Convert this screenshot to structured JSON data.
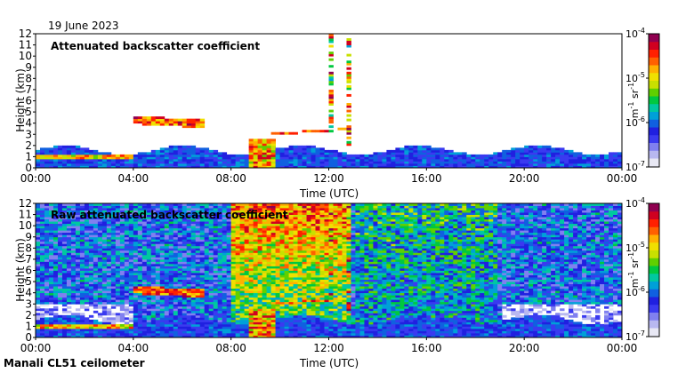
{
  "date": "19 June 2023",
  "footer": "Manali CL51 ceilometer",
  "colors": {
    "colormap": [
      "#e8e8f4",
      "#b8b8f0",
      "#8080f0",
      "#3a3af0",
      "#2020e0",
      "#1060e0",
      "#00a0d8",
      "#00c8a0",
      "#00c840",
      "#60d000",
      "#c8e000",
      "#f0e000",
      "#ffb000",
      "#ff6000",
      "#ff2000",
      "#d00020",
      "#900050"
    ]
  },
  "chart_data": [
    {
      "type": "heatmap",
      "title": "Attenuated backscatter coefficient",
      "xlabel": "Time (UTC)",
      "ylabel": "Height (km)",
      "xlim": [
        0,
        24
      ],
      "ylim": [
        0,
        12
      ],
      "xticks": [
        "00:00",
        "04:00",
        "08:00",
        "12:00",
        "16:00",
        "20:00",
        "00:00"
      ],
      "yticks": [
        "0",
        "1",
        "2",
        "3",
        "4",
        "5",
        "6",
        "7",
        "8",
        "9",
        "10",
        "11",
        "12"
      ],
      "colorbar": {
        "label_base": "m",
        "label_exp1": "-1",
        "label_mid": " sr",
        "label_exp2": "-1",
        "ticks": [
          {
            "base": "10",
            "exp": "-4",
            "value": 0.0001
          },
          {
            "base": "10",
            "exp": "-5",
            "value": 1e-05
          },
          {
            "base": "10",
            "exp": "-6",
            "value": 1e-06
          },
          {
            "base": "10",
            "exp": "-7",
            "value": 1e-07
          }
        ],
        "scale": "log"
      }
    },
    {
      "type": "heatmap",
      "title": "Raw attenuated backscatter coefficient",
      "xlabel": "Time (UTC)",
      "ylabel": "Height (km)",
      "xlim": [
        0,
        24
      ],
      "ylim": [
        0,
        12
      ],
      "xticks": [
        "00:00",
        "04:00",
        "08:00",
        "12:00",
        "16:00",
        "20:00",
        "00:00"
      ],
      "yticks": [
        "0",
        "1",
        "2",
        "3",
        "4",
        "5",
        "6",
        "7",
        "8",
        "9",
        "10",
        "11",
        "12"
      ],
      "colorbar": {
        "label_base": "m",
        "label_exp1": "-1",
        "label_mid": " sr",
        "label_exp2": "-1",
        "ticks": [
          {
            "base": "10",
            "exp": "-4",
            "value": 0.0001
          },
          {
            "base": "10",
            "exp": "-5",
            "value": 1e-05
          },
          {
            "base": "10",
            "exp": "-6",
            "value": 1e-06
          },
          {
            "base": "10",
            "exp": "-7",
            "value": 1e-07
          }
        ],
        "scale": "log"
      }
    }
  ]
}
